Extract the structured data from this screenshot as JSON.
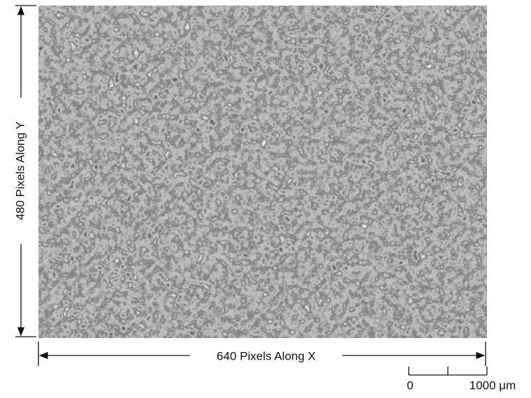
{
  "image": {
    "y_label": "480 Pixels Along Y",
    "x_label": "640 Pixels Along X",
    "scale_bar": {
      "start_label": "0",
      "end_label": "1000 μm"
    }
  }
}
